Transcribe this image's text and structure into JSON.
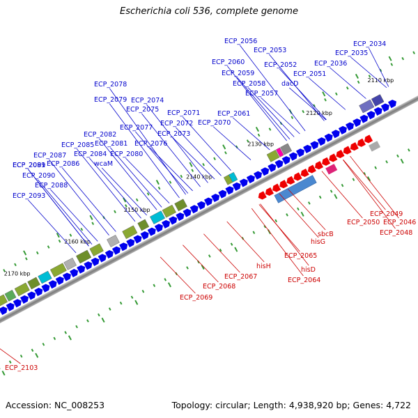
{
  "title": "Escherichia coli 536, complete genome",
  "accession": "Accession: NC_008253",
  "summary": "Topology: circular; Length: 4,938,920 bp; Genes: 4,722",
  "kbp_ticks": [
    "2110 kbp",
    "2120 kbp",
    "2130 kbp",
    "2140 kbp",
    "2150 kbp",
    "2160 kbp",
    "2170 kbp"
  ],
  "colors": {
    "forward": "#0000ee",
    "reverse": "#ee0000",
    "label_forward": "#0000cc",
    "label_reverse": "#cc0000",
    "backbone": "#808080",
    "tick": "#339933"
  },
  "forward_labels": [
    "ECP_2034",
    "ECP_2035",
    "ECP_2036",
    "ECP_2051",
    "ECP_2052",
    "ECP_2053",
    "dacD",
    "ECP_2056",
    "ECP_2057",
    "ECP_2058",
    "ECP_2059",
    "ECP_2060",
    "ECP_2061",
    "ECP_2070",
    "ECP_2071",
    "ECP_2072",
    "ECP_2073",
    "ECP_2074",
    "ECP_2075",
    "ECP_2076",
    "ECP_2077",
    "ECP_2078",
    "ECP_2079",
    "ECP_2080",
    "ECP_2081",
    "ECP_2082",
    "wcaM",
    "ECP_2084",
    "ECP_2085",
    "ECP_2086",
    "ECP_2087",
    "ECP_2088",
    "ECP_2089",
    "ECP_2090",
    "ECP_2091",
    "ECP_2093"
  ],
  "reverse_labels": [
    "ECP_2046",
    "ECP_2048",
    "ECP_2049",
    "ECP_2050",
    "sbcB",
    "hisG",
    "hisD",
    "ECP_2064",
    "ECP_2065",
    "hisH",
    "ECP_2067",
    "ECP_2068",
    "ECP_2069",
    "ECP_2103"
  ]
}
